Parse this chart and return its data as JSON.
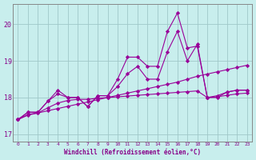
{
  "xlabel": "Windchill (Refroidissement éolien,°C)",
  "background_color": "#c8eeed",
  "grid_color": "#a0c8c8",
  "line_color": "#990099",
  "spine_color": "#888888",
  "xlim": [
    -0.5,
    23.5
  ],
  "ylim": [
    16.8,
    20.55
  ],
  "yticks": [
    17,
    18,
    19,
    20
  ],
  "xticks": [
    0,
    1,
    2,
    3,
    4,
    5,
    6,
    7,
    8,
    9,
    10,
    11,
    12,
    13,
    14,
    15,
    16,
    17,
    18,
    19,
    20,
    21,
    22,
    23
  ],
  "tick_color": "#880088",
  "xlabel_color": "#880088",
  "series": [
    [
      17.4,
      17.6,
      17.6,
      17.9,
      18.2,
      18.0,
      18.0,
      17.75,
      18.05,
      18.05,
      18.5,
      19.1,
      19.1,
      18.85,
      18.85,
      19.8,
      20.3,
      19.35,
      19.4,
      18.0,
      18.05,
      18.15,
      18.2,
      18.2
    ],
    [
      17.4,
      17.6,
      17.6,
      17.9,
      18.1,
      18.0,
      18.0,
      17.75,
      18.05,
      18.05,
      18.3,
      18.65,
      18.85,
      18.5,
      18.5,
      19.25,
      19.8,
      19.0,
      19.45,
      18.0,
      18.0,
      18.15,
      18.2,
      18.2
    ],
    [
      17.4,
      17.52,
      17.58,
      17.64,
      17.7,
      17.76,
      17.82,
      17.88,
      17.94,
      18.0,
      18.06,
      18.12,
      18.18,
      18.24,
      18.3,
      18.36,
      18.42,
      18.5,
      18.58,
      18.64,
      18.7,
      18.76,
      18.82,
      18.88
    ],
    [
      17.4,
      17.54,
      17.58,
      17.72,
      17.85,
      17.92,
      17.95,
      17.95,
      17.98,
      18.0,
      18.02,
      18.04,
      18.06,
      18.08,
      18.1,
      18.12,
      18.14,
      18.16,
      18.18,
      18.0,
      18.02,
      18.06,
      18.1,
      18.12
    ]
  ]
}
